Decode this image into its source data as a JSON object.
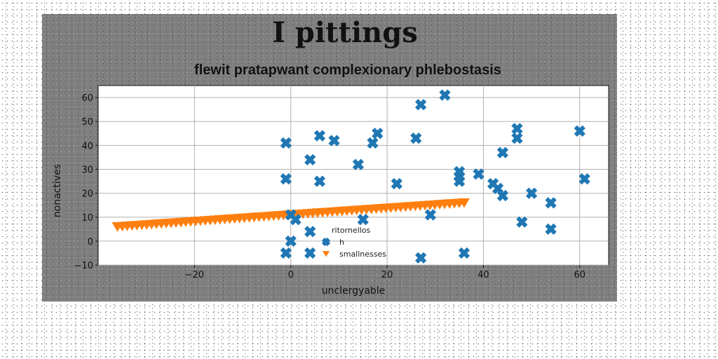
{
  "chart_data": {
    "type": "scatter",
    "title": "I pittings",
    "subtitle": "flewit pratapwant complexionary phlebostasis",
    "xlabel": "unclergyable",
    "ylabel": "nonactives",
    "xlim": [
      -40,
      66
    ],
    "ylim": [
      -10,
      65
    ],
    "xticks": [
      -20,
      0,
      20,
      40,
      60
    ],
    "yticks": [
      -10,
      0,
      10,
      20,
      30,
      40,
      50,
      60
    ],
    "grid": true,
    "legend": {
      "title": "ritornellos",
      "placement": "lower-center"
    },
    "series": [
      {
        "name": "h",
        "marker": "x",
        "color": "#1f77b4",
        "points": [
          [
            -1,
            41
          ],
          [
            -1,
            26
          ],
          [
            -1,
            -5
          ],
          [
            0,
            11
          ],
          [
            0,
            0
          ],
          [
            1,
            9
          ],
          [
            4,
            34
          ],
          [
            4,
            4
          ],
          [
            4,
            -5
          ],
          [
            6,
            44
          ],
          [
            6,
            25
          ],
          [
            9,
            42
          ],
          [
            14,
            32
          ],
          [
            15,
            9
          ],
          [
            17,
            41
          ],
          [
            18,
            45
          ],
          [
            22,
            24
          ],
          [
            26,
            43
          ],
          [
            27,
            57
          ],
          [
            27,
            -7
          ],
          [
            29,
            11
          ],
          [
            32,
            61
          ],
          [
            35,
            29
          ],
          [
            35,
            27
          ],
          [
            35,
            25
          ],
          [
            36,
            -5
          ],
          [
            39,
            28
          ],
          [
            42,
            24
          ],
          [
            43,
            22
          ],
          [
            44,
            19
          ],
          [
            44,
            37
          ],
          [
            47,
            47
          ],
          [
            47,
            43
          ],
          [
            48,
            8
          ],
          [
            50,
            20
          ],
          [
            54,
            16
          ],
          [
            54,
            5
          ],
          [
            60,
            46
          ],
          [
            61,
            26
          ]
        ]
      },
      {
        "name": "smallnesses",
        "marker": "v",
        "color": "#ff7f0e",
        "x_range": [
          -36,
          36
        ],
        "y_range": [
          6,
          16
        ],
        "n_points": 72
      }
    ]
  }
}
